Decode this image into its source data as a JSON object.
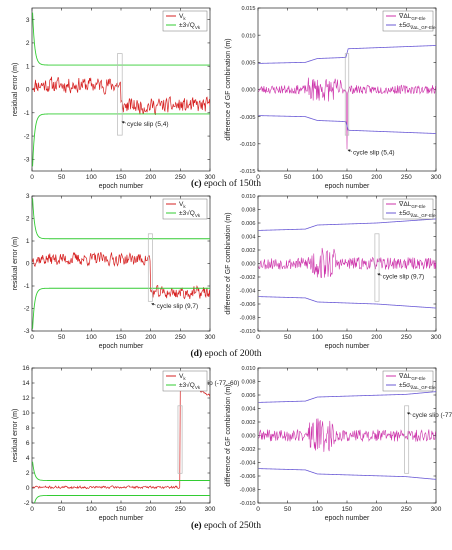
{
  "captions": [
    {
      "letter": "(c)",
      "text": " epoch of 150th"
    },
    {
      "letter": "(d)",
      "text": " epoch of 200th"
    },
    {
      "letter": "(e)",
      "text": " epoch of 250th"
    }
  ],
  "colors": {
    "residual": "#d62020",
    "bound": "#33cc33",
    "gf_diff": "#cc33aa",
    "gf_bound": "#6b5bd6",
    "box": "#b8b8b8"
  },
  "chart_data": [
    {
      "type": "line",
      "panel": "c-left",
      "ylabel": "residual error (m)",
      "xlabel": "epoch number",
      "xlim": [
        0,
        300
      ],
      "ylim": [
        -3.5,
        3.5
      ],
      "xticks": [
        0,
        50,
        100,
        150,
        200,
        250,
        300
      ],
      "yticks": [
        -3,
        -2,
        -1,
        0,
        1,
        2,
        3
      ],
      "legend": [
        "V_k",
        "±3√Q_Vk"
      ],
      "series": [
        {
          "name": "V_k",
          "kind": "residual",
          "pre": 0.2,
          "post": -0.7,
          "jump_at": 150,
          "noise": 0.3,
          "seed": 11
        },
        {
          "name": "±3√Q_Vk",
          "kind": "bound",
          "level": 1.05,
          "start": 3.3
        }
      ],
      "highlight": {
        "x": [
          144,
          152
        ]
      },
      "annotation": {
        "text": "cycle slip (5,4)",
        "x": 150,
        "y": -1.4
      }
    },
    {
      "type": "line",
      "panel": "c-right",
      "ylabel": "difference of GF combination (m)",
      "xlabel": "epoch number",
      "xlim": [
        0,
        300
      ],
      "ylim": [
        -0.015,
        0.015
      ],
      "xticks": [
        0,
        50,
        100,
        150,
        200,
        250,
        300
      ],
      "yticks": [
        -0.015,
        -0.01,
        -0.005,
        0.0,
        0.005,
        0.01,
        0.015
      ],
      "legend": [
        "∇ΔL_GF-Ele",
        "±5σ_∇ΔL_GF-Ele"
      ],
      "series": [
        {
          "name": "∇ΔL_GF-Ele",
          "kind": "gf",
          "amp": 0.0008,
          "burst_amp": 0.0022,
          "burst": [
            85,
            140
          ],
          "spike_at": 150,
          "spike": -0.011,
          "seed": 23
        },
        {
          "name": "±5σ_∇ΔL_GF-Ele",
          "kind": "gfbound",
          "points": [
            [
              0,
              0.0048
            ],
            [
              80,
              0.005
            ],
            [
              100,
              0.0057
            ],
            [
              148,
              0.0059
            ],
            [
              152,
              0.0075
            ],
            [
              300,
              0.0081
            ]
          ]
        }
      ],
      "highlight": {
        "x": [
          147,
          153
        ]
      },
      "annotation": {
        "text": "cycle slip (5,4)",
        "x": 150,
        "y": -0.0112
      }
    },
    {
      "type": "line",
      "panel": "d-left",
      "ylabel": "residual error (m)",
      "xlabel": "epoch number",
      "xlim": [
        0,
        300
      ],
      "ylim": [
        -3,
        3
      ],
      "xticks": [
        0,
        50,
        100,
        150,
        200,
        250,
        300
      ],
      "yticks": [
        -3,
        -2,
        -1,
        0,
        1,
        2,
        3
      ],
      "legend": [
        "V_k",
        "±3√Q_Vk"
      ],
      "series": [
        {
          "name": "V_k",
          "kind": "residual",
          "pre": 0.2,
          "post": -1.3,
          "jump_at": 200,
          "noise": 0.25,
          "seed": 37
        },
        {
          "name": "±3√Q_Vk",
          "kind": "bound",
          "level": 1.1,
          "start": 2.9
        }
      ],
      "highlight": {
        "x": [
          196,
          203
        ]
      },
      "annotation": {
        "text": "cycle slip (9,7)",
        "x": 200,
        "y": -1.8
      }
    },
    {
      "type": "line",
      "panel": "d-right",
      "ylabel": "difference of GF combination (m)",
      "xlabel": "epoch number",
      "xlim": [
        0,
        300
      ],
      "ylim": [
        -0.01,
        0.01
      ],
      "xticks": [
        0,
        50,
        100,
        150,
        200,
        250,
        300
      ],
      "yticks": [
        -0.01,
        -0.008,
        -0.006,
        -0.004,
        -0.002,
        0.0,
        0.002,
        0.004,
        0.006,
        0.008,
        0.01
      ],
      "legend": [
        "∇ΔL_GF-Ele",
        "±5σ_∇ΔL_GF-Ele"
      ],
      "series": [
        {
          "name": "∇ΔL_GF-Ele",
          "kind": "gf",
          "amp": 0.0009,
          "burst_amp": 0.0025,
          "burst": [
            85,
            130
          ],
          "seed": 53
        },
        {
          "name": "±5σ_∇ΔL_GF-Ele",
          "kind": "gfbound",
          "points": [
            [
              0,
              0.0049
            ],
            [
              80,
              0.0051
            ],
            [
              100,
              0.0057
            ],
            [
              200,
              0.006
            ],
            [
              300,
              0.0066
            ]
          ]
        }
      ],
      "highlight": {
        "x": [
          197,
          204
        ]
      },
      "annotation": {
        "text": "cycle slip (9,7)",
        "x": 200,
        "y": -0.0016
      }
    },
    {
      "type": "line",
      "panel": "e-left",
      "ylabel": "residual error (m)",
      "xlabel": "epoch number",
      "xlim": [
        0,
        300
      ],
      "ylim": [
        -2,
        16
      ],
      "xticks": [
        0,
        50,
        100,
        150,
        200,
        250,
        300
      ],
      "yticks": [
        -2,
        0,
        2,
        4,
        6,
        8,
        10,
        12,
        14,
        16
      ],
      "legend": [
        "V_k",
        "±3√Q_Vk"
      ],
      "series": [
        {
          "name": "V_k",
          "kind": "residual",
          "pre": 0.1,
          "post": 14.5,
          "post_end": 12.3,
          "jump_at": 250,
          "noise": 0.15,
          "seed": 71
        },
        {
          "name": "±3√Q_Vk",
          "kind": "bound",
          "level": 1.0,
          "start": 3.5
        }
      ],
      "highlight": {
        "x": [
          246,
          253
        ]
      },
      "annotation": {
        "text": "cycle slip (-77,-60)",
        "x": 250,
        "y": 14.3
      }
    },
    {
      "type": "line",
      "panel": "e-right",
      "ylabel": "difference of GF combination (m)",
      "xlabel": "epoch number",
      "xlim": [
        0,
        300
      ],
      "ylim": [
        -0.01,
        0.01
      ],
      "xticks": [
        0,
        50,
        100,
        150,
        200,
        250,
        300
      ],
      "yticks": [
        -0.01,
        -0.008,
        -0.006,
        -0.004,
        -0.002,
        0.0,
        0.002,
        0.004,
        0.006,
        0.008,
        0.01
      ],
      "legend": [
        "∇ΔL_GF-Ele",
        "±5σ_∇ΔL_GF-Ele"
      ],
      "series": [
        {
          "name": "∇ΔL_GF-Ele",
          "kind": "gf",
          "amp": 0.0009,
          "burst_amp": 0.0026,
          "burst": [
            85,
            130
          ],
          "seed": 89
        },
        {
          "name": "±5σ_∇ΔL_GF-Ele",
          "kind": "gfbound",
          "points": [
            [
              0,
              0.0049
            ],
            [
              80,
              0.0051
            ],
            [
              100,
              0.0057
            ],
            [
              250,
              0.0061
            ],
            [
              300,
              0.0065
            ]
          ]
        }
      ],
      "highlight": {
        "x": [
          247,
          254
        ]
      },
      "annotation": {
        "text": "cycle slip (-77,-60)",
        "x": 250,
        "y": 0.0033
      }
    }
  ]
}
